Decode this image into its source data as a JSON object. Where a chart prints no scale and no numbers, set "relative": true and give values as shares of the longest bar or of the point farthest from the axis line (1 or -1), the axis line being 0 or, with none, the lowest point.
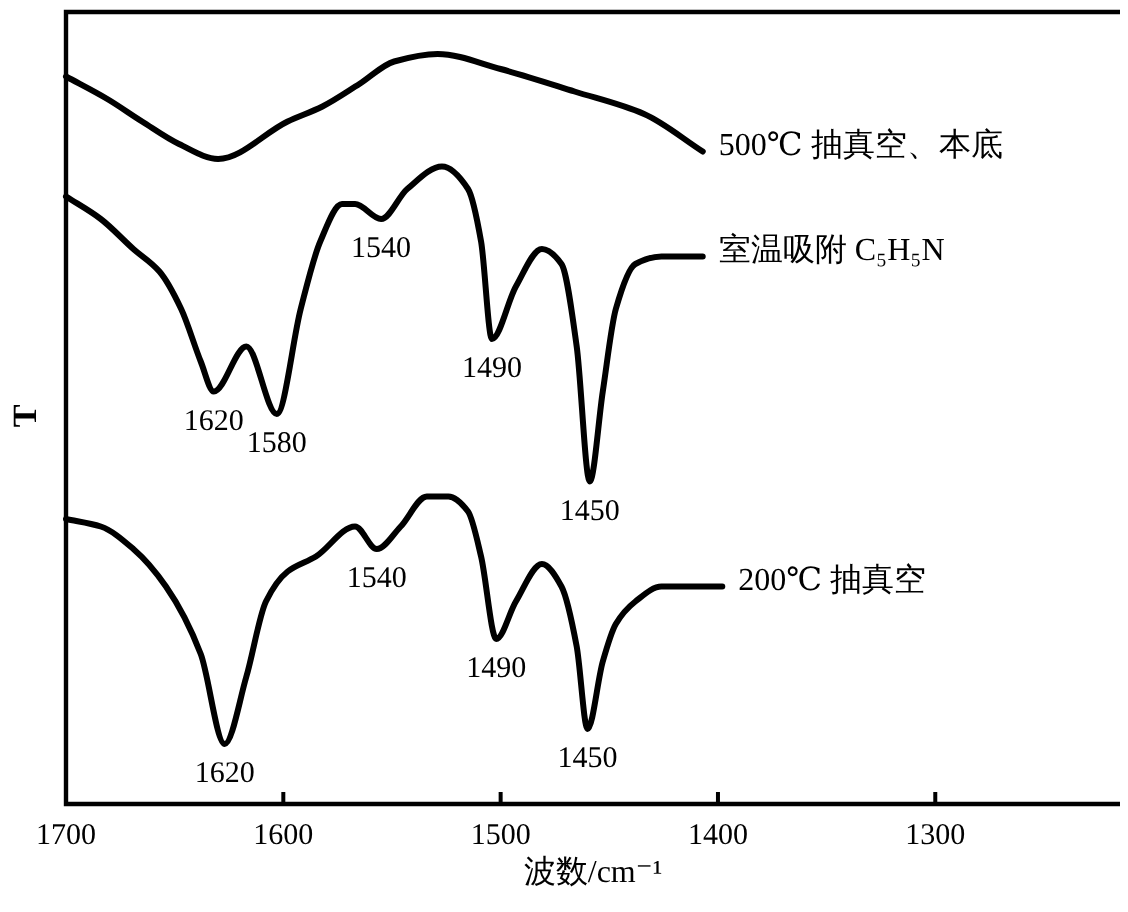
{
  "chart_data": {
    "type": "line",
    "xlabel": "波数/cm⁻¹",
    "ylabel": "T",
    "relative": true,
    "xlim": [
      1700,
      1215
    ],
    "xticks": [
      1700,
      1600,
      1500,
      1400,
      1300
    ],
    "line_style": "solid",
    "series": [
      {
        "name": "500℃ 抽真空、本底",
        "color": "#000000",
        "x": [
          1700,
          1681,
          1665,
          1648,
          1630,
          1598,
          1582,
          1565,
          1549,
          1529,
          1500,
          1466,
          1434,
          1407
        ],
        "values": [
          0.97,
          0.94,
          0.91,
          0.88,
          0.86,
          0.91,
          0.93,
          0.96,
          0.99,
          1,
          0.98,
          0.95,
          0.92,
          0.87
        ]
      },
      {
        "name": "室温吸附 C₅H₅N",
        "color": "#000000",
        "x": [
          1700,
          1684,
          1669,
          1657,
          1647,
          1638,
          1632,
          1617,
          1603,
          1592,
          1583,
          1573,
          1567,
          1555,
          1543,
          1527,
          1515,
          1509,
          1504,
          1493,
          1481,
          1472,
          1465,
          1459,
          1453,
          1447,
          1438,
          1426,
          1407
        ],
        "values": [
          0.81,
          0.78,
          0.74,
          0.71,
          0.66,
          0.59,
          0.55,
          0.61,
          0.52,
          0.66,
          0.75,
          0.8,
          0.8,
          0.78,
          0.82,
          0.85,
          0.82,
          0.75,
          0.62,
          0.69,
          0.74,
          0.72,
          0.61,
          0.43,
          0.55,
          0.66,
          0.72,
          0.73,
          0.73
        ]
      },
      {
        "name": "200℃ 抽真空",
        "color": "#000000",
        "x": [
          1700,
          1684,
          1669,
          1654,
          1638,
          1627,
          1617,
          1608,
          1598,
          1585,
          1567,
          1557,
          1546,
          1534,
          1524,
          1515,
          1509,
          1502,
          1493,
          1481,
          1472,
          1465,
          1460,
          1453,
          1447,
          1438,
          1426,
          1398
        ],
        "values": [
          0.38,
          0.37,
          0.34,
          0.29,
          0.2,
          0.08,
          0.17,
          0.27,
          0.31,
          0.33,
          0.37,
          0.34,
          0.37,
          0.41,
          0.41,
          0.39,
          0.33,
          0.22,
          0.27,
          0.32,
          0.29,
          0.21,
          0.1,
          0.19,
          0.24,
          0.27,
          0.29,
          0.29
        ]
      }
    ],
    "annotations": [
      {
        "text": "1620",
        "x": 1632,
        "y": 0.55
      },
      {
        "text": "1580",
        "x": 1603,
        "y": 0.52
      },
      {
        "text": "1540",
        "x": 1555,
        "y": 0.78
      },
      {
        "text": "1490",
        "x": 1504,
        "y": 0.62
      },
      {
        "text": "1450",
        "x": 1459,
        "y": 0.43
      },
      {
        "text": "1620",
        "x": 1627,
        "y": 0.08
      },
      {
        "text": "1540",
        "x": 1557,
        "y": 0.34
      },
      {
        "text": "1490",
        "x": 1502,
        "y": 0.22
      },
      {
        "text": "1450",
        "x": 1460,
        "y": 0.1
      }
    ]
  }
}
